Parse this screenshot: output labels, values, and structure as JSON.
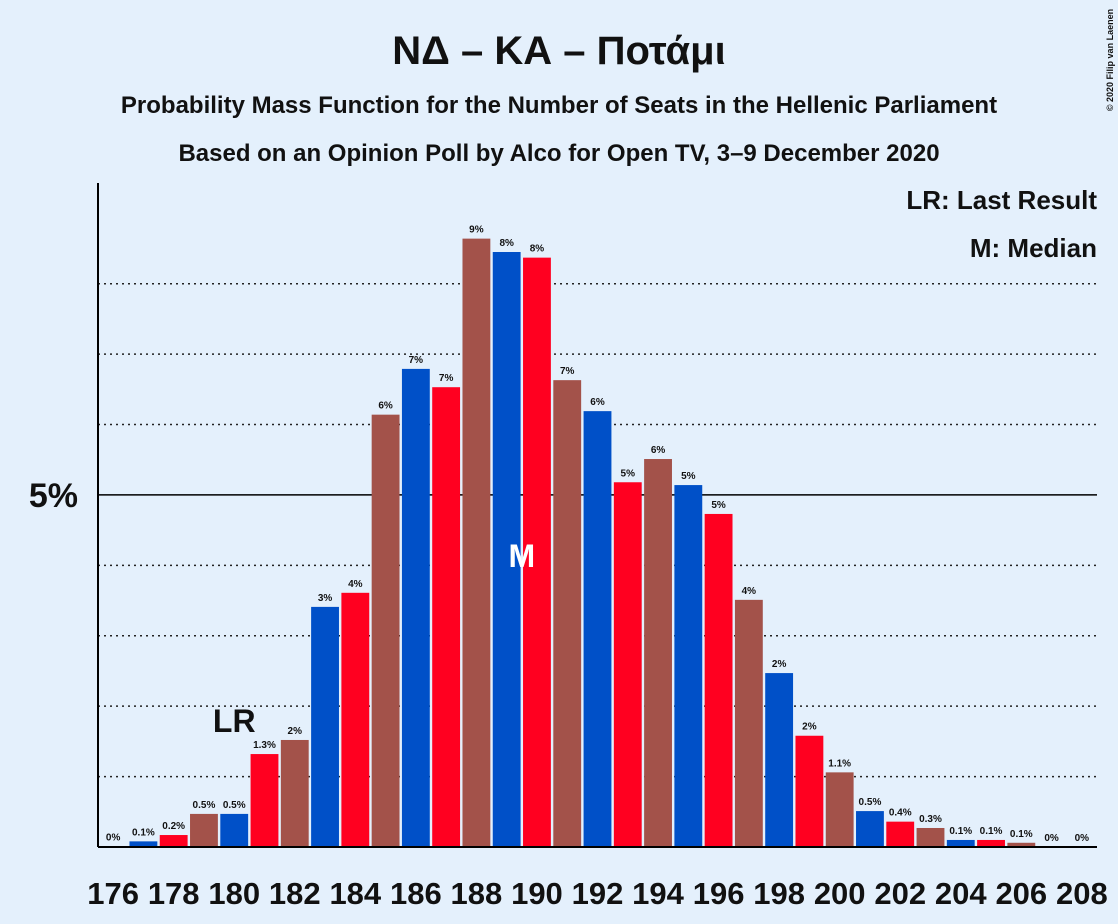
{
  "chart_data": {
    "type": "bar",
    "title": "ΝΔ – ΚΑ – Ποτάμι",
    "subtitle": "Probability Mass Function for the Number of Seats in the Hellenic Parliament",
    "subtitle2": "Based on an Opinion Poll by Alco for Open TV, 3–9 December 2020",
    "copyright": "© 2020 Filip van Laenen",
    "categories": [
      176,
      null,
      178,
      null,
      180,
      null,
      182,
      null,
      184,
      null,
      186,
      null,
      188,
      null,
      190,
      null,
      192,
      null,
      194,
      null,
      196,
      null,
      198,
      null,
      200,
      null,
      202,
      null,
      204,
      null,
      206,
      null,
      208
    ],
    "values": [
      0.01,
      0.08,
      0.17,
      0.47,
      0.47,
      1.32,
      1.52,
      3.41,
      3.61,
      6.14,
      6.79,
      6.53,
      8.64,
      8.45,
      8.37,
      6.63,
      6.19,
      5.18,
      5.51,
      5.14,
      4.73,
      3.51,
      2.47,
      1.58,
      1.06,
      0.51,
      0.36,
      0.27,
      0.1,
      0.1,
      0.06,
      0,
      0
    ],
    "value_labels": [
      "0%",
      "0.1%",
      "0.2%",
      "0.5%",
      "0.5%",
      "1.3%",
      "2%",
      "3%",
      "4%",
      "6%",
      "7%",
      "7%",
      "9%",
      "8%",
      "8%",
      "7%",
      "6%",
      "5%",
      "6%",
      "5%",
      "5%",
      "4%",
      "2%",
      "2%",
      "1.1%",
      "0.5%",
      "0.4%",
      "0.3%",
      "0.1%",
      "0.1%",
      "0.1%",
      "0%",
      "0%"
    ],
    "colors": [
      "#a3524a",
      "#0050c8",
      "#ff0020"
    ],
    "ylim": [
      0,
      9.43
    ],
    "yticks": [
      {
        "value": 5,
        "label": "5%"
      }
    ],
    "minor_yticks": [
      1,
      2,
      3,
      4,
      6,
      7,
      8
    ],
    "annotations": [
      {
        "label": "LR",
        "x": 180
      },
      {
        "label": "M",
        "x": 190
      }
    ],
    "legend": [
      "LR: Last Result",
      "M: Median"
    ]
  }
}
